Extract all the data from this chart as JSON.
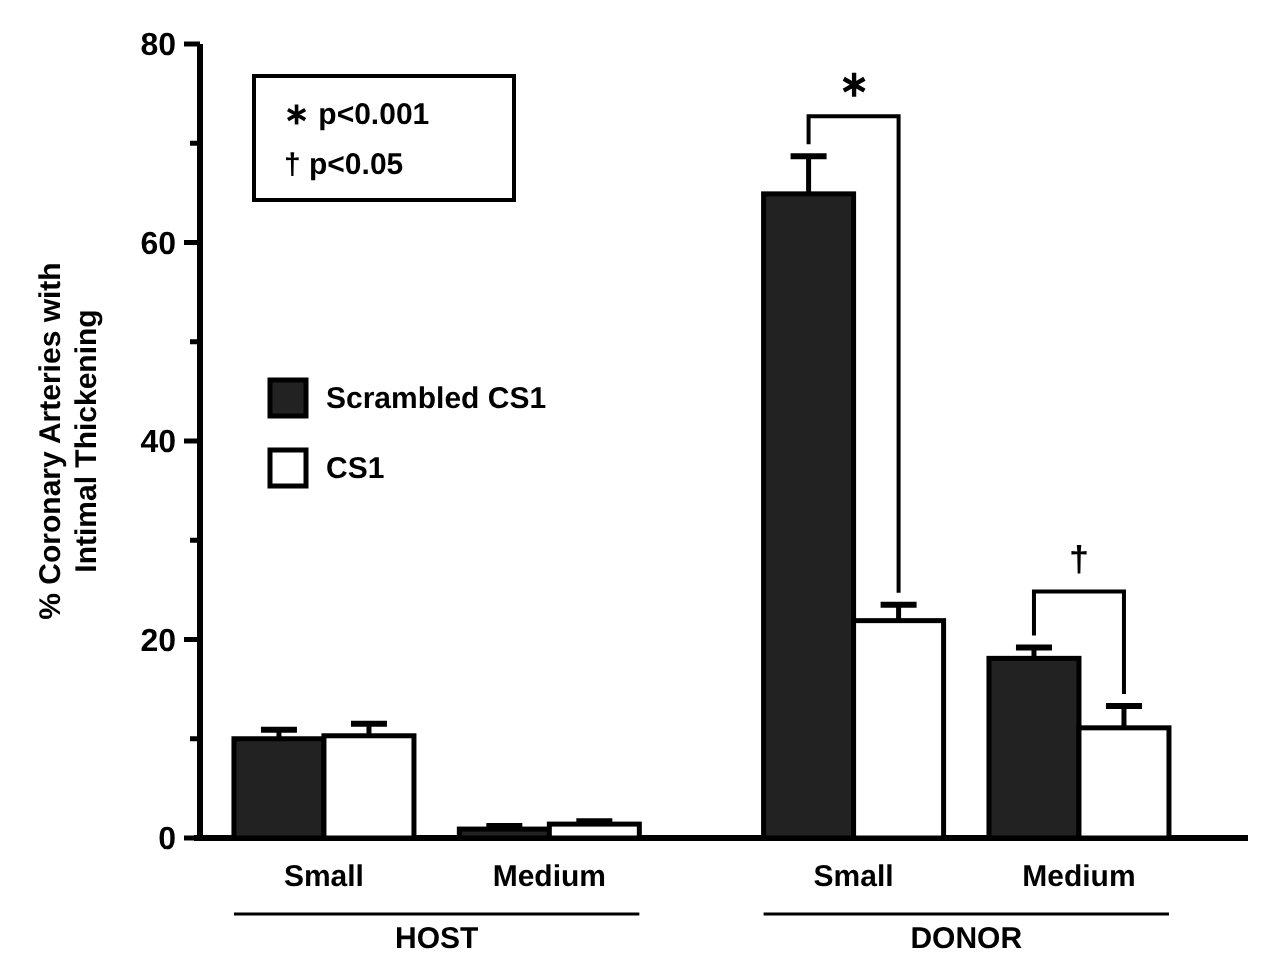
{
  "chart_data": {
    "type": "bar",
    "ylabel": "% Coronary Arteries with Intimal Thickening",
    "categories": [
      "Small",
      "Medium",
      "Small",
      "Medium"
    ],
    "series": [
      {
        "name": "Scrambled CS1",
        "color": "#222222",
        "values": [
          10.0,
          0.9,
          64.9,
          18.1
        ],
        "errors": [
          0.9,
          0.3,
          3.8,
          1.1
        ]
      },
      {
        "name": "CS1",
        "color": "#ffffff",
        "values": [
          10.3,
          1.4,
          21.9,
          11.1
        ],
        "errors": [
          1.2,
          0.3,
          1.6,
          2.2
        ]
      }
    ],
    "ylim": [
      0,
      80
    ],
    "yticks": [
      0,
      {
        "value": 10,
        "label": null
      },
      20,
      {
        "value": 30,
        "label": null
      },
      40,
      {
        "value": 50,
        "label": null
      },
      60,
      {
        "value": 70,
        "label": null
      },
      80
    ],
    "legend": "left",
    "annotations": [
      "∗  p<0.001",
      "†  p<0.05",
      "∗",
      "†",
      "HOST",
      "DONOR"
    ]
  }
}
